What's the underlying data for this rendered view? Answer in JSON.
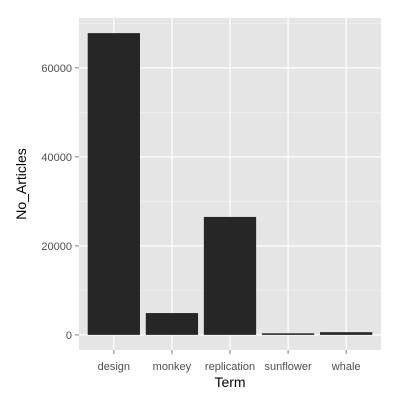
{
  "chart_data": {
    "type": "bar",
    "categories": [
      "design",
      "monkey",
      "replication",
      "sunflower",
      "whale"
    ],
    "values": [
      67800,
      4900,
      26500,
      350,
      600
    ],
    "xlabel": "Term",
    "ylabel": "No_Articles",
    "ylim": [
      -3400,
      71200
    ],
    "yticks": [
      0,
      20000,
      40000,
      60000
    ],
    "ytick_labels": [
      "0",
      "20000",
      "40000",
      "60000"
    ],
    "grid": true,
    "legend": "none",
    "colors": {
      "panel": "#e5e5e5",
      "grid_major": "#ffffff",
      "grid_minor": "#f2f2f2",
      "bar": "#262626"
    }
  }
}
